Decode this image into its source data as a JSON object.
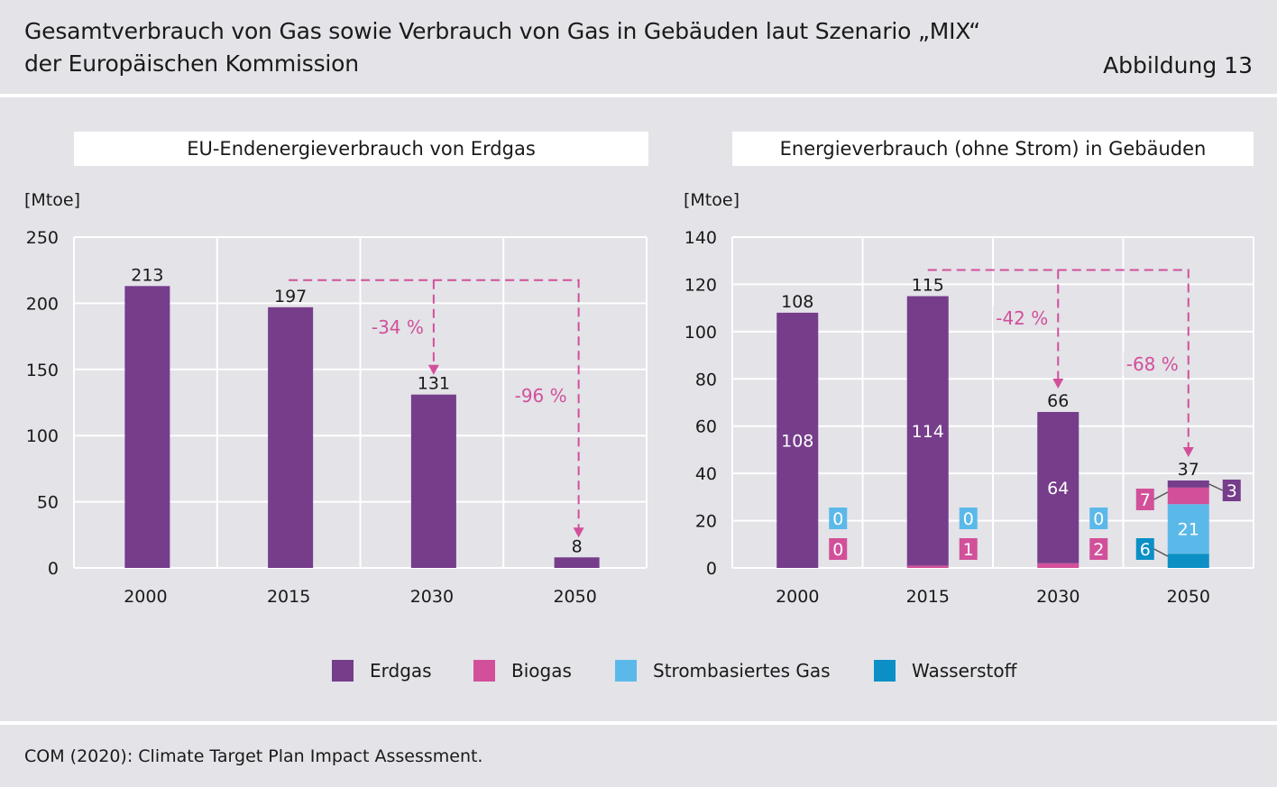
{
  "header": {
    "title_line1": "Gesamtverbrauch von Gas sowie Verbrauch von Gas in Gebäuden laut Szenario „MIX“",
    "title_line2": "der Europäischen Kommission",
    "figure_label": "Abbildung 13"
  },
  "colors": {
    "erdgas": "#763d8b",
    "biogas": "#d2509a",
    "strombasiert": "#5bb9e9",
    "wasserstoff": "#0b8fc5",
    "arrow": "#d2509a",
    "background": "#e3e3e8"
  },
  "chart_data": [
    {
      "type": "bar",
      "title": "EU-Endenergieverbrauch von Erdgas",
      "ylabel": "[Mtoe]",
      "xlabel": "",
      "categories": [
        "2000",
        "2015",
        "2030",
        "2050"
      ],
      "series": [
        {
          "values": [
            213,
            197,
            131,
            8
          ]
        }
      ],
      "ylim": [
        0,
        250
      ],
      "yticks": [
        0,
        50,
        100,
        150,
        200,
        250
      ],
      "grid": true,
      "annotations": [
        {
          "from": "2015",
          "to": "2030",
          "label": "-34 %"
        },
        {
          "from": "2015",
          "to": "2050",
          "label": "-96 %"
        }
      ]
    },
    {
      "type": "bar",
      "stacked": true,
      "title": "Energieverbrauch (ohne Strom) in Gebäuden",
      "ylabel": "[Mtoe]",
      "xlabel": "",
      "categories": [
        "2000",
        "2015",
        "2030",
        "2050"
      ],
      "totals": [
        108,
        115,
        66,
        37
      ],
      "series": [
        {
          "name": "Wasserstoff",
          "values": [
            0,
            0,
            0,
            6
          ]
        },
        {
          "name": "Strombasiertes Gas",
          "values": [
            0,
            0,
            0,
            21
          ]
        },
        {
          "name": "Biogas",
          "values": [
            0,
            1,
            2,
            7
          ]
        },
        {
          "name": "Erdgas",
          "values": [
            108,
            114,
            64,
            3
          ]
        }
      ],
      "ylim": [
        0,
        140
      ],
      "yticks": [
        0,
        20,
        40,
        60,
        80,
        100,
        120,
        140
      ],
      "grid": true,
      "annotations": [
        {
          "from": "2015",
          "to": "2030",
          "label": "-42 %"
        },
        {
          "from": "2015",
          "to": "2050",
          "label": "-68 %"
        }
      ]
    }
  ],
  "legend": {
    "items": [
      {
        "label": "Erdgas",
        "color": "#763d8b"
      },
      {
        "label": "Biogas",
        "color": "#d2509a"
      },
      {
        "label": "Strombasiertes Gas",
        "color": "#5bb9e9"
      },
      {
        "label": "Wasserstoff",
        "color": "#0b8fc5"
      }
    ]
  },
  "source": "COM (2020): Climate Target Plan Impact Assessment."
}
